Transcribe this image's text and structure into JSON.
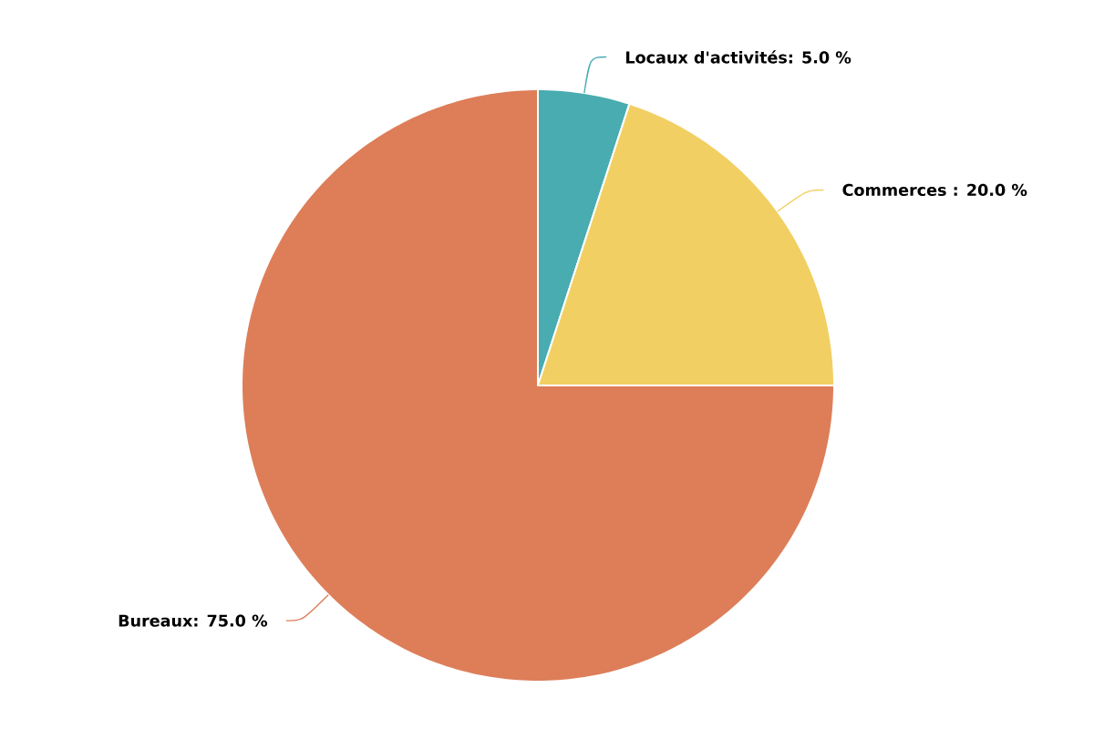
{
  "chart_data": {
    "type": "pie",
    "categories": [
      "Locaux d'activités",
      "Commerces",
      "Bureaux"
    ],
    "values": [
      5.0,
      20.0,
      75.0
    ],
    "colors": [
      "#48acb0",
      "#f2cf63",
      "#dd7e59"
    ],
    "value_labels": [
      ": 5.0 %",
      " : 20.0 %",
      ": 75.0 %"
    ]
  }
}
